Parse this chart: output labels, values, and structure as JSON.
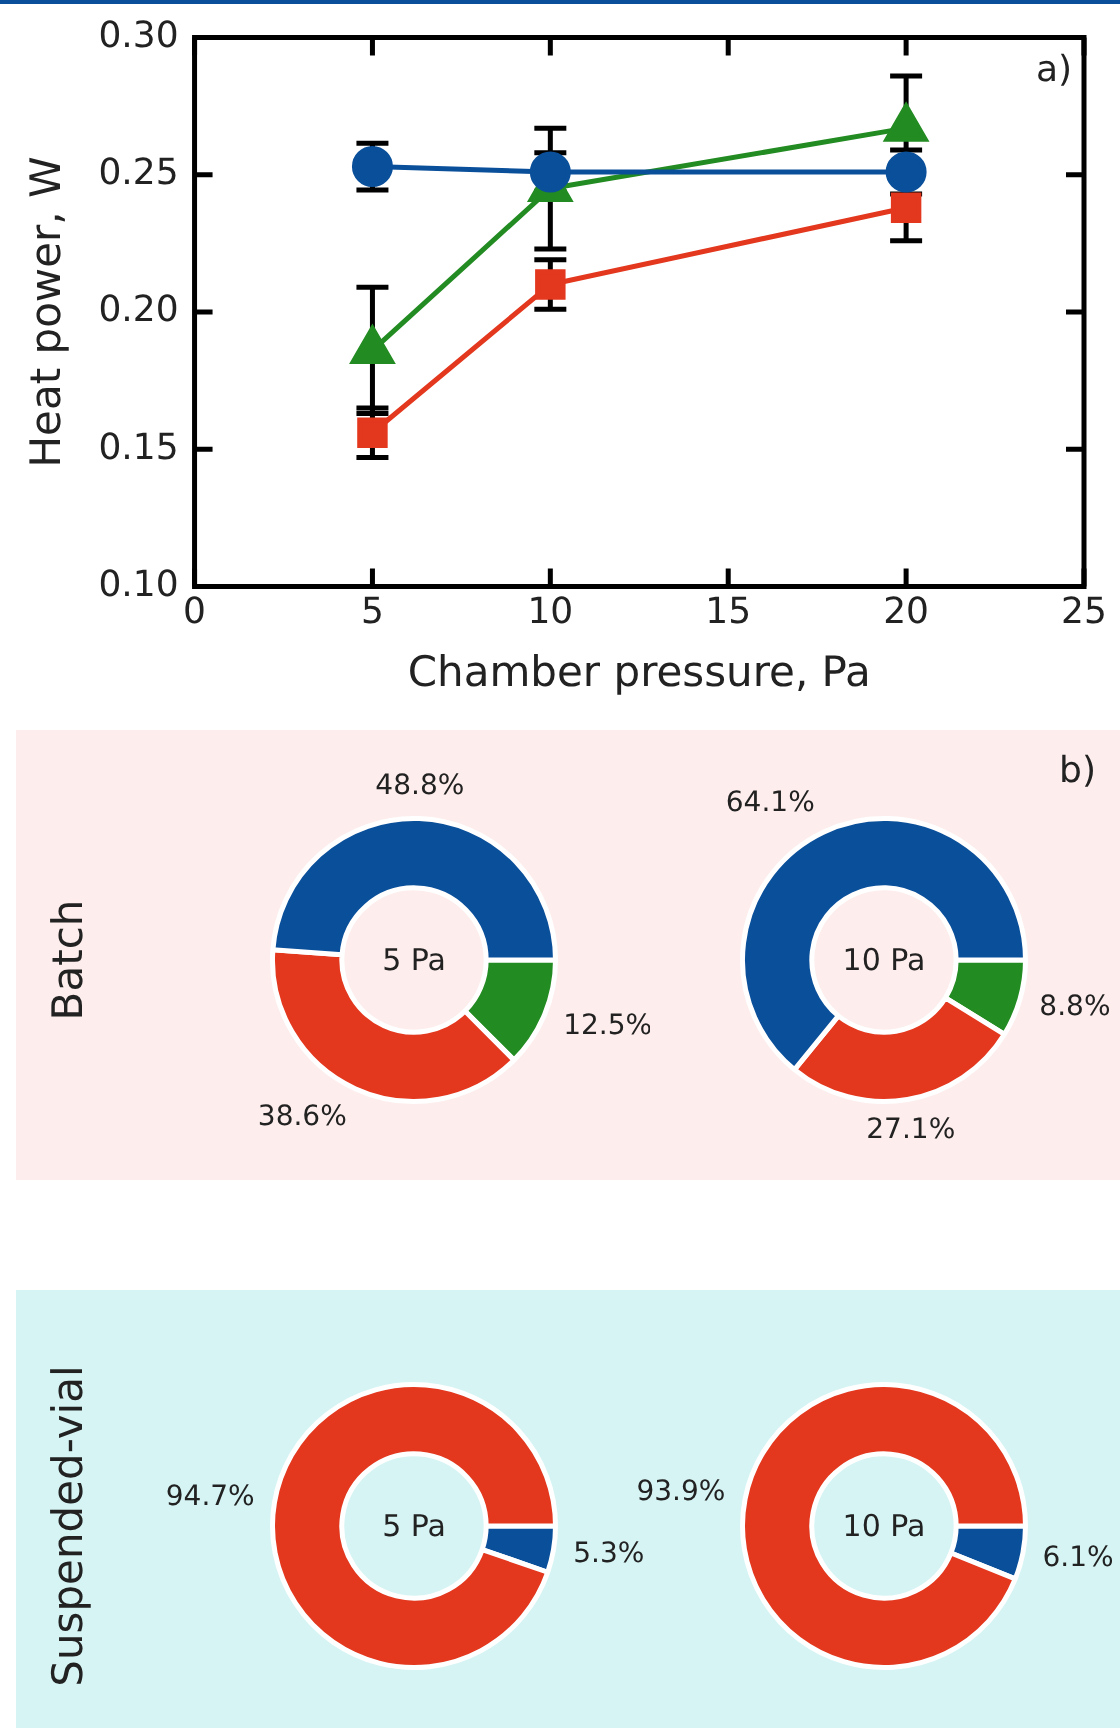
{
  "chart_data": [
    {
      "type": "line",
      "xlabel": "Chamber pressure, Pa",
      "ylabel": "Heat power, W",
      "x": [
        5,
        10,
        20
      ],
      "xlim": [
        0,
        25
      ],
      "xticks": [
        0,
        5,
        10,
        15,
        20,
        25
      ],
      "ylim": [
        0.1,
        0.3
      ],
      "yticks": [
        {
          "value": 0.1,
          "label": "0.10"
        },
        {
          "value": 0.15,
          "label": "0.15"
        },
        {
          "value": 0.2,
          "label": "0.20"
        },
        {
          "value": 0.25,
          "label": "0.25"
        },
        {
          "value": 0.3,
          "label": "0.30"
        }
      ],
      "annotations": [
        "a)"
      ],
      "grid": false,
      "series": [
        {
          "color": "#0a4f9a",
          "marker": "circle",
          "values": [
            0.253,
            0.251,
            0.251
          ],
          "errors": [
            0.0085,
            0.007,
            0.008
          ]
        },
        {
          "color": "#228b22",
          "marker": "triangle",
          "values": [
            0.186,
            0.245,
            0.267
          ],
          "errors": [
            0.023,
            0.022,
            0.019
          ]
        },
        {
          "color": "#e3371e",
          "marker": "square",
          "values": [
            0.156,
            0.21,
            0.238
          ],
          "errors": [
            0.009,
            0.009,
            0.012
          ]
        }
      ]
    },
    {
      "type": "donut",
      "title": "5 Pa",
      "ylabel": "Batch",
      "annotations": [
        "b)"
      ],
      "categories": [
        null,
        null,
        null
      ],
      "values": [
        12.5,
        38.6,
        48.8
      ],
      "colors": [
        "#228b22",
        "#e3371e",
        "#0a4f9a"
      ],
      "value_labels": [
        "12.5%",
        "38.6%",
        "48.8%"
      ]
    },
    {
      "type": "donut",
      "title": "10 Pa",
      "categories": [
        null,
        null,
        null
      ],
      "values": [
        8.8,
        27.1,
        64.1
      ],
      "colors": [
        "#228b22",
        "#e3371e",
        "#0a4f9a"
      ],
      "value_labels": [
        "8.8%",
        "27.1%",
        "64.1%"
      ]
    },
    {
      "type": "donut",
      "title": "5 Pa",
      "ylabel": "Suspended-vial",
      "categories": [
        null,
        null
      ],
      "values": [
        5.3,
        94.7
      ],
      "colors": [
        "#0a4f9a",
        "#e3371e"
      ],
      "value_labels": [
        "5.3%",
        "94.7%"
      ]
    },
    {
      "type": "donut",
      "title": "10 Pa",
      "categories": [
        null,
        null
      ],
      "values": [
        6.1,
        93.9
      ],
      "colors": [
        "#0a4f9a",
        "#e3371e"
      ],
      "value_labels": [
        "6.1%",
        "93.9%"
      ]
    }
  ]
}
